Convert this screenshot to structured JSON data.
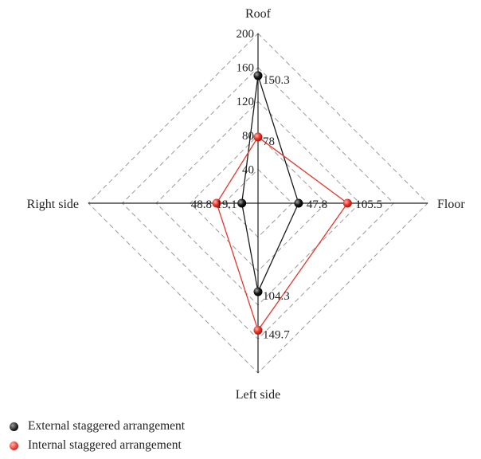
{
  "chart_data": {
    "type": "radar",
    "title": "",
    "axes": [
      "Roof",
      "Floor",
      "Left side",
      "Right side"
    ],
    "axis_range": [
      0,
      200
    ],
    "ticks": [
      40,
      80,
      120,
      160,
      200
    ],
    "grid": "dashed diamonds",
    "legend_position": "bottom-left",
    "series": [
      {
        "name": "External staggered arrangement",
        "color": "#1a1a1a",
        "values": [
          150.3,
          47.8,
          104.3,
          19.1
        ],
        "value_labels": [
          "150.3",
          "47.8",
          "104.3",
          "19.1"
        ]
      },
      {
        "name": "Internal staggered arrangement",
        "color": "#e8352b",
        "values": [
          78,
          105.5,
          149.7,
          48.8
        ],
        "value_labels": [
          "78",
          "105.5",
          "149.7",
          "48.8"
        ]
      }
    ]
  }
}
